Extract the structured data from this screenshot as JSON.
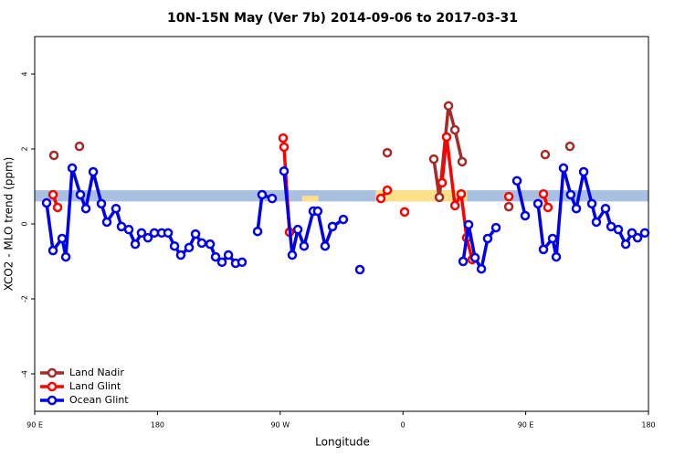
{
  "chart_data": {
    "type": "line",
    "title": "10N-15N May (Ver 7b)   2014-09-06 to 2017-03-31",
    "x_label": "Longitude",
    "y_label": "XCO2 - MLO trend (ppm)",
    "xlim": [
      90,
      540
    ],
    "xticks": [
      {
        "value": 90,
        "label": "90 E"
      },
      180,
      {
        "value": 270,
        "label": "90 W"
      },
      {
        "value": 360,
        "label": "0"
      },
      {
        "value": 450,
        "label": "90 E"
      },
      {
        "value": 540,
        "label": "180"
      }
    ],
    "ylim": [
      -5,
      5
    ],
    "yticks": [
      -4,
      -2,
      0,
      2,
      4
    ],
    "legend": "bottom-left",
    "reference_band": {
      "ymin": 0.6,
      "ymax": 0.9,
      "color": "#a9c0e0"
    },
    "highlight_bands": {
      "color": "#fde08a",
      "bands": [
        {
          "x": [
            286,
            298
          ],
          "y": [
            0.6,
            0.75
          ]
        },
        {
          "x": [
            340,
            407
          ],
          "y": [
            0.6,
            0.9
          ]
        }
      ]
    },
    "series": [
      {
        "name": "Land Nadir",
        "color": "#a52a2a",
        "x": [
          104.1,
          null,
          122.8,
          null,
          348.5,
          null,
          382.6,
          386.7,
          393.4,
          398.1,
          403.4,
          null,
          437.6,
          null,
          464.3,
          null,
          482.4
        ],
        "values": [
          1.83,
          null,
          2.07,
          null,
          1.9,
          null,
          1.73,
          0.71,
          3.15,
          2.51,
          1.66,
          null,
          0.46,
          null,
          1.85,
          null,
          2.07
        ]
      },
      {
        "name": "Land Glint",
        "color": "#ff0000",
        "x": [
          103.4,
          106.8,
          null,
          272.1,
          272.8,
          276.8,
          null,
          343.8,
          348.5,
          null,
          361.2,
          null,
          388.7,
          392,
          398.1,
          402.7,
          406.7,
          410.8,
          null,
          437.6,
          null,
          463,
          466.3
        ],
        "values": [
          0.78,
          0.44,
          null,
          2.29,
          2.05,
          -0.22,
          null,
          0.68,
          0.9,
          null,
          0.32,
          null,
          1.1,
          2.32,
          0.49,
          0.8,
          -0.37,
          -0.95,
          null,
          0.73,
          null,
          0.8,
          0.44
        ]
      },
      {
        "name": "Ocean Glint",
        "color": "#0000ee",
        "x": [
          98.7,
          103.4,
          110.1,
          112.8,
          117.5,
          123.5,
          127.5,
          132.9,
          138.9,
          142.9,
          149.6,
          153.6,
          159,
          163.7,
          168.3,
          173,
          177.7,
          183.1,
          187.8,
          192.5,
          197.1,
          203.2,
          207.9,
          212.5,
          218.6,
          222.6,
          227.3,
          232,
          237.3,
          242,
          null,
          253.4,
          256.7,
          264.1,
          null,
          272.8,
          278.8,
          282.9,
          287.5,
          294.2,
          297.5,
          302.9,
          308.3,
          316.3,
          null,
          328.4,
          null,
          404.1,
          408.1,
          412.8,
          417.5,
          422.1,
          428.2,
          null,
          443.6,
          449.6,
          null,
          459,
          463,
          469.7,
          472.4,
          477.7,
          483,
          487.1,
          492.5,
          498.5,
          501.8,
          508.5,
          512.6,
          517.9,
          523.3,
          527.9,
          532,
          537.3
        ],
        "values": [
          0.56,
          -0.71,
          -0.39,
          -0.88,
          1.49,
          0.78,
          0.41,
          1.39,
          0.54,
          0.05,
          0.41,
          -0.07,
          -0.15,
          -0.54,
          -0.24,
          -0.37,
          -0.24,
          -0.24,
          -0.24,
          -0.59,
          -0.83,
          -0.63,
          -0.27,
          -0.51,
          -0.54,
          -0.88,
          -1.02,
          -0.83,
          -1.05,
          -1.02,
          null,
          -0.2,
          0.78,
          0.68,
          null,
          1.41,
          -0.83,
          -0.15,
          -0.59,
          0.34,
          0.34,
          -0.59,
          -0.07,
          0.12,
          null,
          -1.22,
          null,
          -1.0,
          -0.02,
          -0.9,
          -1.2,
          -0.39,
          -0.1,
          null,
          1.15,
          0.22,
          null,
          0.54,
          -0.68,
          -0.39,
          -0.88,
          1.49,
          0.78,
          0.41,
          1.39,
          0.54,
          0.05,
          0.41,
          -0.07,
          -0.15,
          -0.54,
          -0.24,
          -0.37,
          -0.24
        ]
      }
    ]
  }
}
